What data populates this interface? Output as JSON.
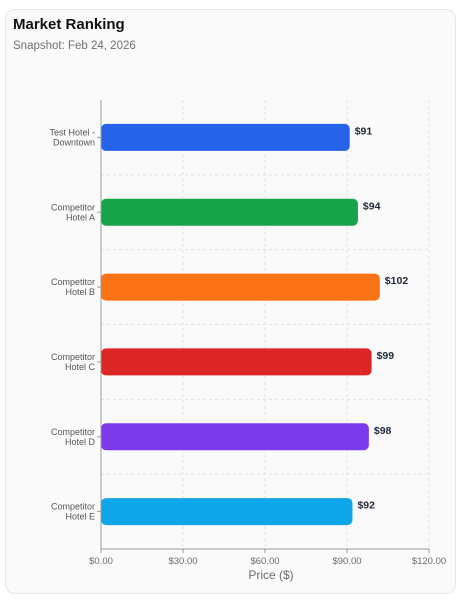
{
  "card": {
    "title": "Market Ranking",
    "subtitle": "Snapshot: Feb 24, 2026"
  },
  "chart_data": {
    "type": "bar",
    "orientation": "horizontal",
    "categories": [
      [
        "Test Hotel -",
        "Downtown"
      ],
      [
        "Competitor",
        "Hotel A"
      ],
      [
        "Competitor",
        "Hotel B"
      ],
      [
        "Competitor",
        "Hotel C"
      ],
      [
        "Competitor",
        "Hotel D"
      ],
      [
        "Competitor",
        "Hotel E"
      ]
    ],
    "values": [
      91,
      94,
      102,
      99,
      98,
      92
    ],
    "value_labels": [
      "$91",
      "$94",
      "$102",
      "$99",
      "$98",
      "$92"
    ],
    "bar_colors": [
      "#2563eb",
      "#16a34a",
      "#f97316",
      "#dc2626",
      "#7c3aed",
      "#0ea5e9"
    ],
    "xlabel": "Price ($)",
    "ylabel": "",
    "xlim": [
      0,
      120
    ],
    "x_ticks": [
      0,
      30,
      60,
      90,
      120
    ],
    "x_tick_labels": [
      "$0.00",
      "$30.00",
      "$60.00",
      "$90.00",
      "$120.00"
    ],
    "grid": true,
    "legend": "none"
  }
}
